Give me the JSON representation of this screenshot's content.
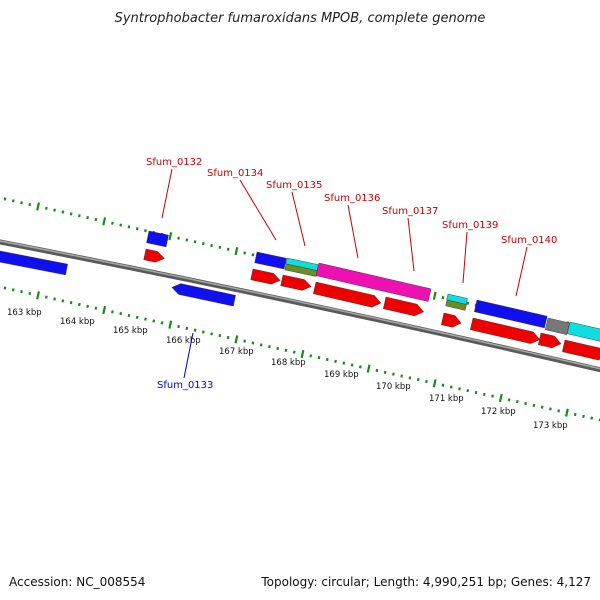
{
  "title": "Syntrophobacter fumaroxidans MPOB, complete genome",
  "footer": {
    "accession": "Accession: NC_008554",
    "summary": "Topology: circular; Length: 4,990,251 bp; Genes: 4,127"
  },
  "colors": {
    "backbone": "#7a7a7a",
    "tick": "#1a8a1a",
    "forward_label": "#cc0000",
    "reverse_label": "#0000cc",
    "blue": "#1010ee",
    "red": "#ee0000",
    "magenta": "#ee10b0",
    "cyan": "#10dddd",
    "olive": "#6b8e23",
    "gray": "#777777"
  },
  "kbp_labels": [
    "163 kbp",
    "164 kbp",
    "165 kbp",
    "166 kbp",
    "167 kbp",
    "168 kbp",
    "169 kbp",
    "170 kbp",
    "171 kbp",
    "172 kbp",
    "173 kbp"
  ],
  "gene_labels": [
    {
      "text": "Sfum_0132",
      "strand": "forward"
    },
    {
      "text": "Sfum_0133",
      "strand": "reverse"
    },
    {
      "text": "Sfum_0134",
      "strand": "forward"
    },
    {
      "text": "Sfum_0135",
      "strand": "forward"
    },
    {
      "text": "Sfum_0136",
      "strand": "forward"
    },
    {
      "text": "Sfum_0137",
      "strand": "forward"
    },
    {
      "text": "Sfum_0139",
      "strand": "forward"
    },
    {
      "text": "Sfum_0140",
      "strand": "forward"
    }
  ]
}
